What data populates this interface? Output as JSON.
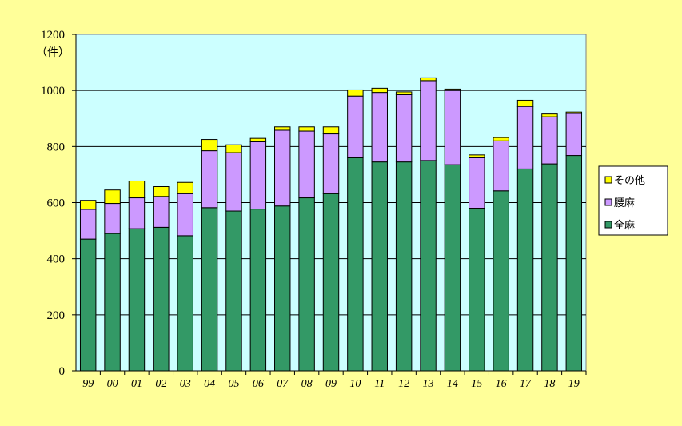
{
  "chart_data": {
    "type": "bar",
    "stacked": true,
    "unit_label": "（件）",
    "categories": [
      "99",
      "00",
      "01",
      "02",
      "03",
      "04",
      "05",
      "06",
      "07",
      "08",
      "09",
      "10",
      "11",
      "12",
      "13",
      "14",
      "15",
      "16",
      "17",
      "18",
      "19"
    ],
    "series": [
      {
        "name": "全麻",
        "color": "#339966",
        "values": [
          470,
          490,
          507,
          512,
          482,
          582,
          570,
          577,
          588,
          617,
          632,
          760,
          745,
          745,
          750,
          735,
          580,
          642,
          720,
          738,
          768
        ]
      },
      {
        "name": "腰麻",
        "color": "#CC99FF",
        "values": [
          106,
          107,
          110,
          110,
          150,
          203,
          208,
          240,
          270,
          238,
          213,
          220,
          248,
          240,
          285,
          265,
          180,
          178,
          223,
          168,
          150
        ]
      },
      {
        "name": "その他",
        "color": "#FFFF00",
        "values": [
          32,
          48,
          60,
          35,
          40,
          40,
          28,
          12,
          12,
          15,
          25,
          22,
          15,
          10,
          10,
          5,
          10,
          12,
          22,
          10,
          5
        ]
      }
    ],
    "yticks": [
      0,
      200,
      400,
      600,
      800,
      1000,
      1200
    ],
    "ylim": [
      0,
      1200
    ],
    "grid": true,
    "legend_position": "right",
    "legend_order": [
      "その他",
      "腰麻",
      "全麻"
    ],
    "colors": {
      "background": "#FFFF99",
      "plot_area": "#CCFFFF",
      "gridline": "#000000",
      "bar_outline": "#000000"
    }
  }
}
